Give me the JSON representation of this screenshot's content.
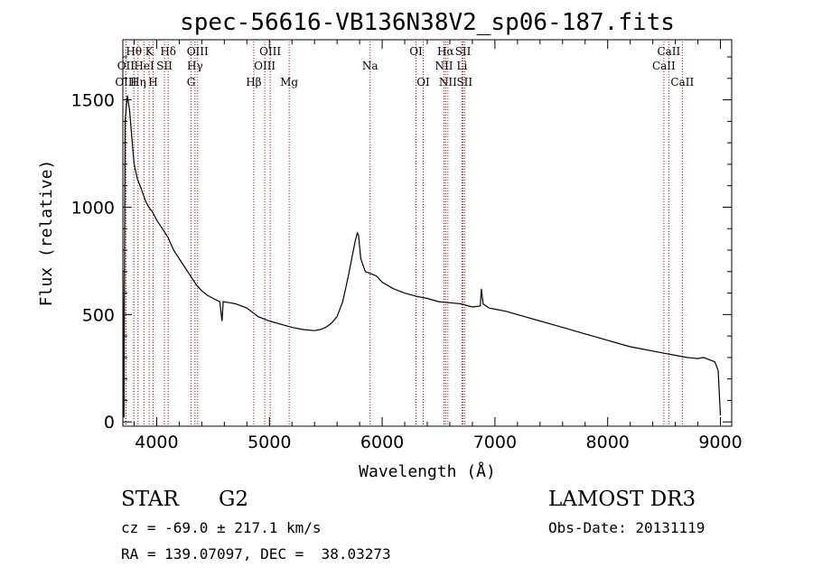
{
  "chart_data": {
    "type": "line",
    "title": "spec-56616-VB136N38V2_sp06-187.fits",
    "xlabel": "Wavelength (Å)",
    "ylabel": "Flux (relative)",
    "xlim": [
      3700,
      9100
    ],
    "ylim": [
      -20,
      1780
    ],
    "xticks": [
      4000,
      5000,
      6000,
      7000,
      8000,
      9000
    ],
    "yticks": [
      0,
      500,
      1000,
      1500
    ],
    "series": [
      {
        "name": "spectrum",
        "points": [
          [
            3700,
            700
          ],
          [
            3710,
            20
          ],
          [
            3720,
            1400
          ],
          [
            3740,
            1520
          ],
          [
            3760,
            1450
          ],
          [
            3780,
            1320
          ],
          [
            3800,
            1200
          ],
          [
            3830,
            1130
          ],
          [
            3860,
            1090
          ],
          [
            3900,
            1030
          ],
          [
            3930,
            1000
          ],
          [
            3960,
            980
          ],
          [
            4000,
            940
          ],
          [
            4050,
            900
          ],
          [
            4100,
            860
          ],
          [
            4150,
            800
          ],
          [
            4200,
            760
          ],
          [
            4250,
            720
          ],
          [
            4300,
            680
          ],
          [
            4350,
            640
          ],
          [
            4400,
            610
          ],
          [
            4450,
            590
          ],
          [
            4500,
            575
          ],
          [
            4560,
            560
          ],
          [
            4580,
            470
          ],
          [
            4590,
            560
          ],
          [
            4650,
            555
          ],
          [
            4700,
            550
          ],
          [
            4800,
            530
          ],
          [
            4900,
            490
          ],
          [
            5000,
            470
          ],
          [
            5100,
            455
          ],
          [
            5200,
            440
          ],
          [
            5300,
            430
          ],
          [
            5400,
            425
          ],
          [
            5450,
            430
          ],
          [
            5500,
            440
          ],
          [
            5550,
            460
          ],
          [
            5600,
            490
          ],
          [
            5650,
            560
          ],
          [
            5700,
            680
          ],
          [
            5730,
            760
          ],
          [
            5760,
            840
          ],
          [
            5780,
            880
          ],
          [
            5790,
            870
          ],
          [
            5810,
            760
          ],
          [
            5850,
            700
          ],
          [
            5900,
            690
          ],
          [
            5950,
            680
          ],
          [
            6000,
            650
          ],
          [
            6100,
            620
          ],
          [
            6200,
            600
          ],
          [
            6300,
            585
          ],
          [
            6400,
            575
          ],
          [
            6500,
            560
          ],
          [
            6600,
            555
          ],
          [
            6700,
            550
          ],
          [
            6800,
            535
          ],
          [
            6870,
            540
          ],
          [
            6880,
            620
          ],
          [
            6895,
            550
          ],
          [
            6950,
            530
          ],
          [
            7000,
            525
          ],
          [
            7100,
            515
          ],
          [
            7200,
            500
          ],
          [
            7300,
            485
          ],
          [
            7400,
            470
          ],
          [
            7500,
            455
          ],
          [
            7600,
            440
          ],
          [
            7700,
            425
          ],
          [
            7800,
            410
          ],
          [
            7900,
            395
          ],
          [
            8000,
            380
          ],
          [
            8100,
            365
          ],
          [
            8200,
            350
          ],
          [
            8300,
            340
          ],
          [
            8400,
            330
          ],
          [
            8500,
            320
          ],
          [
            8600,
            310
          ],
          [
            8700,
            300
          ],
          [
            8800,
            295
          ],
          [
            8850,
            300
          ],
          [
            8900,
            290
          ],
          [
            8950,
            280
          ],
          [
            8980,
            240
          ],
          [
            9000,
            30
          ]
        ]
      }
    ],
    "spectral_lines": [
      {
        "label": "Hθ",
        "wl": 3798,
        "row": 1
      },
      {
        "label": "OII",
        "wl": 3727,
        "row": 2
      },
      {
        "label": "OIII",
        "wl": 3727,
        "row": 3
      },
      {
        "label": "Hη",
        "wl": 3835,
        "row": 3
      },
      {
        "label": "K",
        "wl": 3934,
        "row": 1
      },
      {
        "label": "HeI",
        "wl": 3889,
        "row": 2
      },
      {
        "label": "H",
        "wl": 3968,
        "row": 3
      },
      {
        "label": "SII",
        "wl": 4069,
        "row": 2
      },
      {
        "label": "Hδ",
        "wl": 4102,
        "row": 1
      },
      {
        "label": "OIII",
        "wl": 4363,
        "row": 1
      },
      {
        "label": "Hγ",
        "wl": 4340,
        "row": 2
      },
      {
        "label": "G",
        "wl": 4305,
        "row": 3
      },
      {
        "label": "Hβ",
        "wl": 4861,
        "row": 3
      },
      {
        "label": "OIII",
        "wl": 5007,
        "row": 1
      },
      {
        "label": "OIII",
        "wl": 4959,
        "row": 2
      },
      {
        "label": "Mg",
        "wl": 5175,
        "row": 3
      },
      {
        "label": "Na",
        "wl": 5893,
        "row": 2
      },
      {
        "label": "OI",
        "wl": 6300,
        "row": 1
      },
      {
        "label": "OI",
        "wl": 6364,
        "row": 3
      },
      {
        "label": "Hα",
        "wl": 6563,
        "row": 1
      },
      {
        "label": "NII",
        "wl": 6548,
        "row": 2
      },
      {
        "label": "NII",
        "wl": 6583,
        "row": 3
      },
      {
        "label": "SII",
        "wl": 6717,
        "row": 1
      },
      {
        "label": "Li",
        "wl": 6708,
        "row": 2
      },
      {
        "label": "SII",
        "wl": 6731,
        "row": 3
      },
      {
        "label": "CaII",
        "wl": 8542,
        "row": 1
      },
      {
        "label": "CaII",
        "wl": 8498,
        "row": 2
      },
      {
        "label": "CaII",
        "wl": 8662,
        "row": 3
      }
    ],
    "line_color": "#000000",
    "marker_color": "#cc0000"
  },
  "info": {
    "object_class": "STAR",
    "subclass": "G2",
    "redshift": "cz = -69.0 ± 217.1 km/s",
    "coords": "RA = 139.07097, DEC =  38.03273",
    "survey": "LAMOST DR3",
    "obs_date": "Obs-Date: 20131119"
  }
}
